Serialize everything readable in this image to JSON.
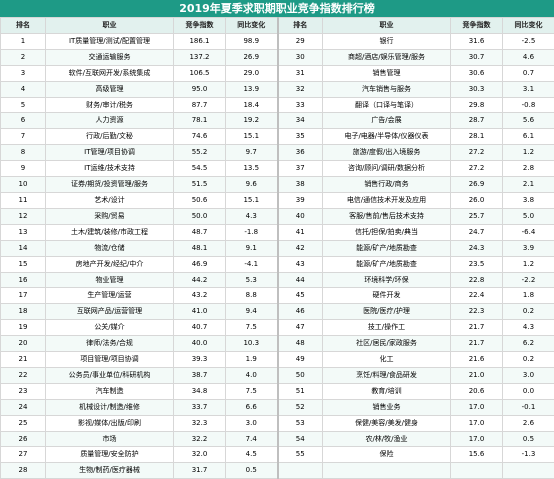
{
  "title": "2019年夏季求职期职业竞争指数排行榜",
  "headers": [
    "排名",
    "职业",
    "竞争指数",
    "同比变化",
    "排名",
    "职业",
    "竞争指数",
    "同比变化"
  ],
  "rows": [
    [
      [
        "1",
        "IT质量管理/测试/配置管理",
        "186.1",
        "98.9"
      ],
      [
        "29",
        "银行",
        "31.6",
        "-2.5"
      ]
    ],
    [
      [
        "2",
        "交通运输服务",
        "137.2",
        "26.9"
      ],
      [
        "30",
        "商超/酒店/娱乐管理/服务",
        "30.7",
        "4.6"
      ]
    ],
    [
      [
        "3",
        "软件/互联网开发/系统集成",
        "106.5",
        "29.0"
      ],
      [
        "31",
        "销售管理",
        "30.6",
        "0.7"
      ]
    ],
    [
      [
        "4",
        "高级管理",
        "95.0",
        "13.9"
      ],
      [
        "32",
        "汽车销售与服务",
        "30.3",
        "3.1"
      ]
    ],
    [
      [
        "5",
        "财务/审计/税务",
        "87.7",
        "18.4"
      ],
      [
        "33",
        "翻译（口译与笔译）",
        "29.8",
        "-0.8"
      ]
    ],
    [
      [
        "6",
        "人力资源",
        "78.1",
        "19.2"
      ],
      [
        "34",
        "广告/会展",
        "28.7",
        "5.6"
      ]
    ],
    [
      [
        "7",
        "行政/后勤/文秘",
        "74.6",
        "15.1"
      ],
      [
        "35",
        "电子/电器/半导体/仪器仪表",
        "28.1",
        "6.1"
      ]
    ],
    [
      [
        "8",
        "IT管理/项目协调",
        "55.2",
        "9.7"
      ],
      [
        "36",
        "旅游/度假/出入境服务",
        "27.2",
        "1.2"
      ]
    ],
    [
      [
        "9",
        "IT运维/技术支持",
        "54.5",
        "13.5"
      ],
      [
        "37",
        "咨询/顾问/调研/数据分析",
        "27.2",
        "2.8"
      ]
    ],
    [
      [
        "10",
        "证券/期货/投资管理/服务",
        "51.5",
        "9.6"
      ],
      [
        "38",
        "销售行政/商务",
        "26.9",
        "2.1"
      ]
    ],
    [
      [
        "11",
        "艺术/设计",
        "50.6",
        "15.1"
      ],
      [
        "39",
        "电信/通信技术开发及应用",
        "26.0",
        "3.8"
      ]
    ],
    [
      [
        "12",
        "采购/贸易",
        "50.0",
        "4.3"
      ],
      [
        "40",
        "客服/售前/售后技术支持",
        "25.7",
        "5.0"
      ]
    ],
    [
      [
        "13",
        "土木/建筑/装修/市政工程",
        "48.7",
        "-1.8"
      ],
      [
        "41",
        "信托/担保/拍卖/典当",
        "24.7",
        "-6.4"
      ]
    ],
    [
      [
        "14",
        "物流/仓储",
        "48.1",
        "9.1"
      ],
      [
        "42",
        "能源/矿产/地质勘查",
        "24.3",
        "3.9"
      ]
    ],
    [
      [
        "15",
        "房地产开发/经纪/中介",
        "46.9",
        "-4.1"
      ],
      [
        "43",
        "能源/矿产/地质勘查",
        "23.5",
        "1.2"
      ]
    ],
    [
      [
        "16",
        "物业管理",
        "44.2",
        "5.3"
      ],
      [
        "44",
        "环境科学/环保",
        "22.8",
        "-2.2"
      ]
    ],
    [
      [
        "17",
        "生产管理/运营",
        "43.2",
        "8.8"
      ],
      [
        "45",
        "硬件开发",
        "22.4",
        "1.8"
      ]
    ],
    [
      [
        "18",
        "互联网产品/运营管理",
        "41.0",
        "9.4"
      ],
      [
        "46",
        "医院/医疗/护理",
        "22.3",
        "0.2"
      ]
    ],
    [
      [
        "19",
        "公关/媒介",
        "40.7",
        "7.5"
      ],
      [
        "47",
        "技工/操作工",
        "21.7",
        "4.3"
      ]
    ],
    [
      [
        "20",
        "律师/法务/合规",
        "40.0",
        "10.3"
      ],
      [
        "48",
        "社区/居民/家政服务",
        "21.7",
        "6.2"
      ]
    ],
    [
      [
        "21",
        "项目管理/项目协调",
        "39.3",
        "1.9"
      ],
      [
        "49",
        "化工",
        "21.6",
        "0.2"
      ]
    ],
    [
      [
        "22",
        "公务员/事业单位/科研机构",
        "38.7",
        "4.0"
      ],
      [
        "50",
        "烹饪/料理/食品研发",
        "21.0",
        "3.0"
      ]
    ],
    [
      [
        "23",
        "汽车制造",
        "34.8",
        "7.5"
      ],
      [
        "51",
        "教育/培训",
        "20.6",
        "0.0"
      ]
    ],
    [
      [
        "24",
        "机械设计/制造/维修",
        "33.7",
        "6.6"
      ],
      [
        "52",
        "销售业务",
        "17.0",
        "-0.1"
      ]
    ],
    [
      [
        "25",
        "影视/媒体/出版/印刷",
        "32.3",
        "3.0"
      ],
      [
        "53",
        "保健/美容/美发/健身",
        "17.0",
        "2.6"
      ]
    ],
    [
      [
        "26",
        "市场",
        "32.2",
        "7.4"
      ],
      [
        "54",
        "农/林/牧/渔业",
        "17.0",
        "0.5"
      ]
    ],
    [
      [
        "27",
        "质量管理/安全防护",
        "32.0",
        "4.5"
      ],
      [
        "55",
        "保险",
        "15.6",
        "-1.3"
      ]
    ],
    [
      [
        "28",
        "生物/制药/医疗器械",
        "31.7",
        "0.5"
      ],
      [
        "",
        "",
        "",
        ""
      ]
    ]
  ]
}
